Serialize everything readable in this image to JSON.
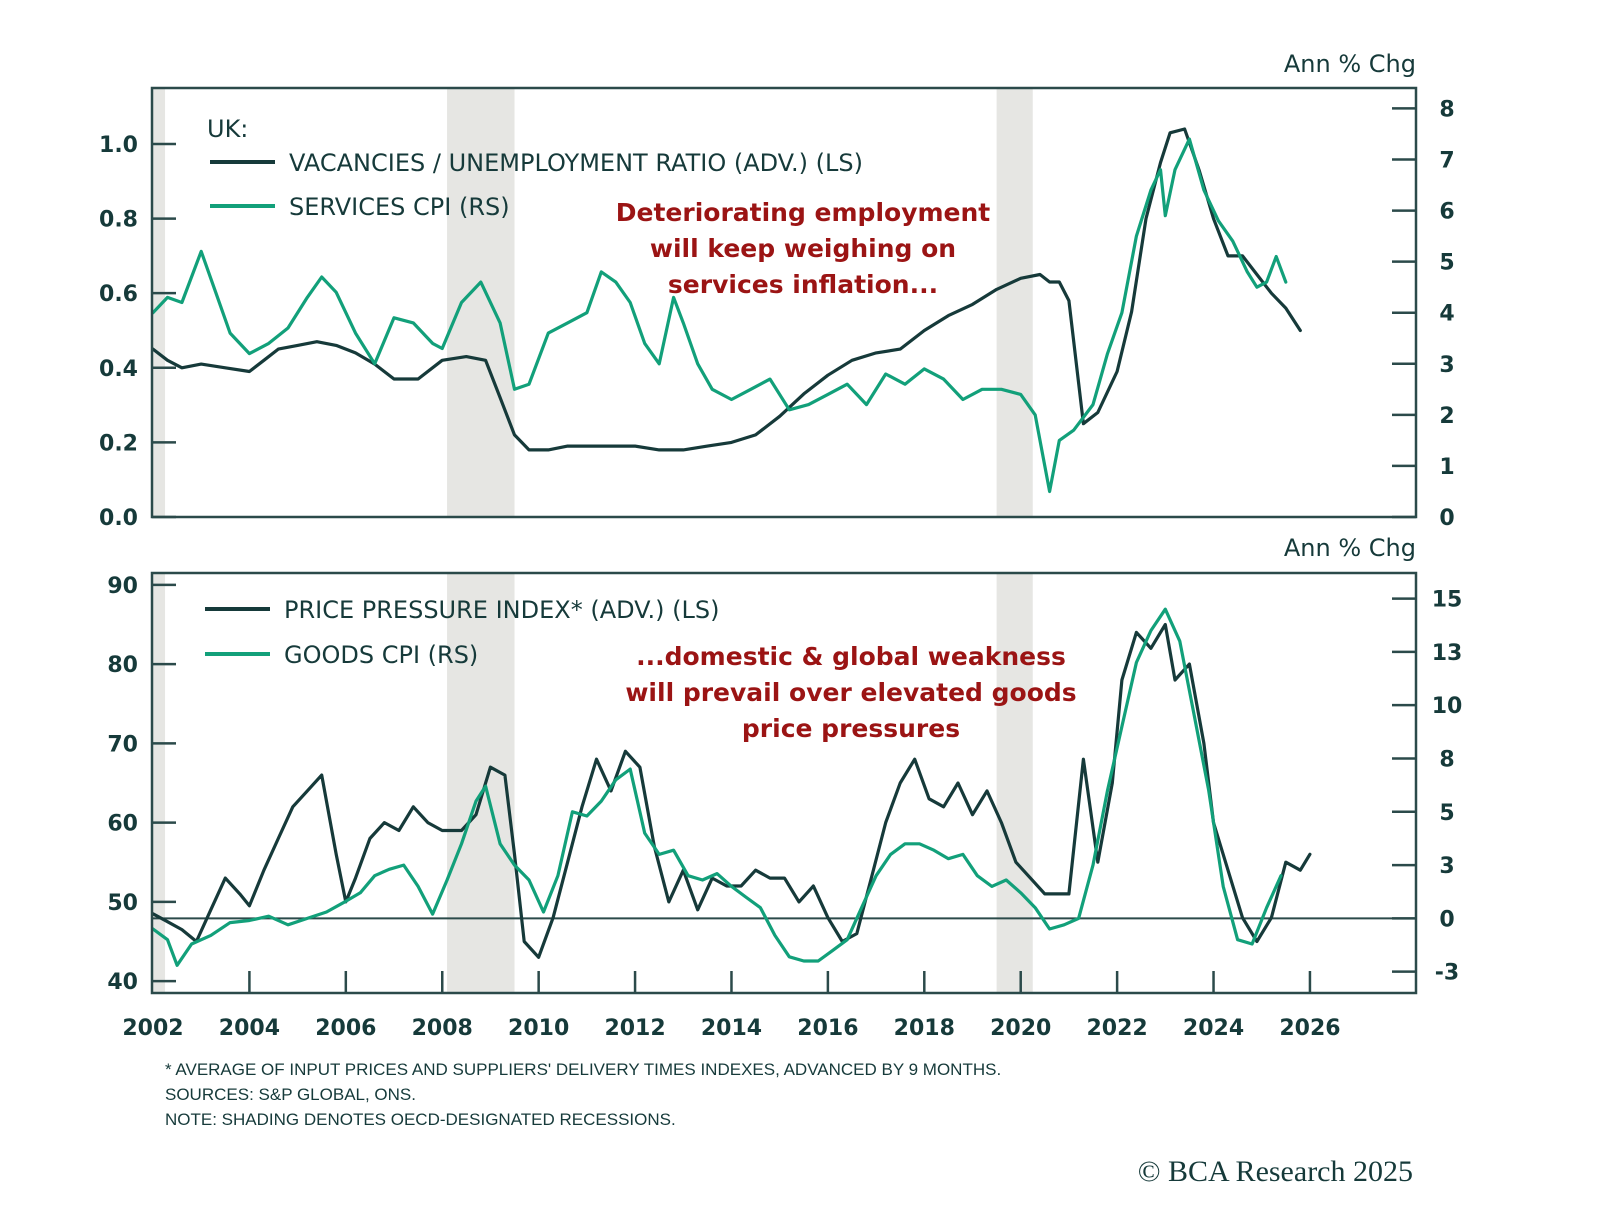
{
  "colors": {
    "dark_series": "#163a3a",
    "green_series": "#12a07a",
    "annotation": "#9b1414",
    "recession": "#e6e6e3",
    "axis": "#2b4a4a"
  },
  "footer": {
    "note1": "* AVERAGE OF INPUT PRICES AND SUPPLIERS' DELIVERY TIMES INDEXES, ADVANCED BY 9 MONTHS.",
    "note2": "SOURCES: S&P GLOBAL, ONS.",
    "note3": "NOTE: SHADING DENOTES OECD-DESIGNATED RECESSIONS.",
    "copyright": "© BCA Research 2025"
  },
  "chart_data": [
    {
      "type": "line",
      "panel": "top",
      "title": "UK:",
      "right_unit_label": "Ann % Chg",
      "annotation": [
        "Deteriorating employment",
        "will keep weighing on",
        "services inflation..."
      ],
      "x_ticks": [
        "2002",
        "2004",
        "2006",
        "2008",
        "2010",
        "2012",
        "2014",
        "2016",
        "2018",
        "2020",
        "2022",
        "2024",
        "2026"
      ],
      "xlim": [
        2002,
        2028.2
      ],
      "left_axis": {
        "ylim": [
          0.0,
          1.15
        ],
        "ticks": [
          0.0,
          0.2,
          0.4,
          0.6,
          0.8,
          1.0
        ],
        "tick_labels": [
          "0.0",
          "0.2",
          "0.4",
          "0.6",
          "0.8",
          "1.0"
        ]
      },
      "right_axis": {
        "ylim": [
          0,
          8.4
        ],
        "ticks": [
          0,
          1,
          2,
          3,
          4,
          5,
          6,
          7,
          8
        ],
        "tick_labels": [
          "0",
          "1",
          "2",
          "3",
          "4",
          "5",
          "6",
          "7",
          "8"
        ]
      },
      "recessions": [
        [
          2002.0,
          2002.25
        ],
        [
          2008.1,
          2009.5
        ],
        [
          2019.5,
          2020.25
        ]
      ],
      "series": [
        {
          "name": "VACANCIES / UNEMPLOYMENT RATIO (ADV.) (LS)",
          "axis": "left",
          "color_key": "dark_series",
          "x": [
            2002.0,
            2002.3,
            2002.6,
            2003.0,
            2003.5,
            2004.0,
            2004.3,
            2004.6,
            2005.0,
            2005.4,
            2005.8,
            2006.2,
            2006.6,
            2007.0,
            2007.5,
            2008.0,
            2008.5,
            2008.9,
            2009.2,
            2009.5,
            2009.8,
            2010.2,
            2010.6,
            2011.0,
            2011.5,
            2012.0,
            2012.5,
            2013.0,
            2013.5,
            2014.0,
            2014.5,
            2015.0,
            2015.5,
            2016.0,
            2016.5,
            2017.0,
            2017.5,
            2018.0,
            2018.5,
            2019.0,
            2019.5,
            2020.0,
            2020.4,
            2020.6,
            2020.8,
            2021.0,
            2021.3,
            2021.6,
            2022.0,
            2022.3,
            2022.6,
            2022.9,
            2023.1,
            2023.4,
            2023.7,
            2024.0,
            2024.3,
            2024.6,
            2024.9,
            2025.2,
            2025.5,
            2025.8
          ],
          "y": [
            0.45,
            0.42,
            0.4,
            0.41,
            0.4,
            0.39,
            0.42,
            0.45,
            0.46,
            0.47,
            0.46,
            0.44,
            0.41,
            0.37,
            0.37,
            0.42,
            0.43,
            0.42,
            0.32,
            0.22,
            0.18,
            0.18,
            0.19,
            0.19,
            0.19,
            0.19,
            0.18,
            0.18,
            0.19,
            0.2,
            0.22,
            0.27,
            0.33,
            0.38,
            0.42,
            0.44,
            0.45,
            0.5,
            0.54,
            0.57,
            0.61,
            0.64,
            0.65,
            0.63,
            0.63,
            0.58,
            0.25,
            0.28,
            0.39,
            0.55,
            0.8,
            0.95,
            1.03,
            1.04,
            0.93,
            0.8,
            0.7,
            0.7,
            0.65,
            0.6,
            0.56,
            0.5
          ]
        },
        {
          "name": "SERVICES CPI (RS)",
          "axis": "right",
          "color_key": "green_series",
          "x": [
            2002.0,
            2002.3,
            2002.6,
            2003.0,
            2003.3,
            2003.6,
            2004.0,
            2004.4,
            2004.8,
            2005.2,
            2005.5,
            2005.8,
            2006.2,
            2006.6,
            2007.0,
            2007.4,
            2007.8,
            2008.0,
            2008.4,
            2008.8,
            2009.2,
            2009.5,
            2009.8,
            2010.2,
            2010.6,
            2011.0,
            2011.3,
            2011.6,
            2011.9,
            2012.2,
            2012.5,
            2012.8,
            2013.0,
            2013.3,
            2013.6,
            2014.0,
            2014.4,
            2014.8,
            2015.2,
            2015.6,
            2016.0,
            2016.4,
            2016.8,
            2017.2,
            2017.6,
            2018.0,
            2018.4,
            2018.8,
            2019.2,
            2019.6,
            2020.0,
            2020.3,
            2020.5,
            2020.6,
            2020.8,
            2021.1,
            2021.5,
            2021.8,
            2022.1,
            2022.4,
            2022.7,
            2022.9,
            2023.0,
            2023.2,
            2023.5,
            2023.8,
            2024.1,
            2024.4,
            2024.7,
            2024.9,
            2025.1,
            2025.3,
            2025.5
          ],
          "y": [
            4.0,
            4.3,
            4.2,
            5.2,
            4.4,
            3.6,
            3.2,
            3.4,
            3.7,
            4.3,
            4.7,
            4.4,
            3.6,
            3.0,
            3.9,
            3.8,
            3.4,
            3.3,
            4.2,
            4.6,
            3.8,
            2.5,
            2.6,
            3.6,
            3.8,
            4.0,
            4.8,
            4.6,
            4.2,
            3.4,
            3.0,
            4.3,
            3.8,
            3.0,
            2.5,
            2.3,
            2.5,
            2.7,
            2.1,
            2.2,
            2.4,
            2.6,
            2.2,
            2.8,
            2.6,
            2.9,
            2.7,
            2.3,
            2.5,
            2.5,
            2.4,
            2.0,
            1.0,
            0.5,
            1.5,
            1.7,
            2.2,
            3.2,
            4.0,
            5.5,
            6.4,
            6.8,
            5.9,
            6.8,
            7.4,
            6.4,
            5.8,
            5.4,
            4.8,
            4.5,
            4.6,
            5.1,
            4.6
          ]
        }
      ]
    },
    {
      "type": "line",
      "panel": "bottom",
      "right_unit_label": "Ann % Chg",
      "annotation": [
        "...domestic & global weakness",
        "will prevail over elevated goods",
        "price pressures"
      ],
      "x_ticks": [
        "2002",
        "2004",
        "2006",
        "2008",
        "2010",
        "2012",
        "2014",
        "2016",
        "2018",
        "2020",
        "2022",
        "2024",
        "2026"
      ],
      "xlim": [
        2002,
        2028.2
      ],
      "left_axis": {
        "ylim": [
          38.5,
          91.5
        ],
        "ticks": [
          40,
          50,
          60,
          70,
          80,
          90
        ],
        "tick_labels": [
          "40",
          "50",
          "60",
          "70",
          "80",
          "90"
        ]
      },
      "right_axis": {
        "ylim": [
          -3.5,
          16.2
        ],
        "ticks": [
          -2.5,
          0,
          2.5,
          5,
          7.5,
          10,
          12.5,
          15
        ],
        "tick_labels": [
          "-3",
          "0",
          "3",
          "5",
          "8",
          "10",
          "13",
          "15"
        ]
      },
      "zero_line": 0,
      "recessions": [
        [
          2002.0,
          2002.25
        ],
        [
          2008.1,
          2009.5
        ],
        [
          2019.5,
          2020.25
        ]
      ],
      "series": [
        {
          "name": "PRICE PRESSURE INDEX* (ADV.) (LS)",
          "axis": "left",
          "color_key": "dark_series",
          "x": [
            2002.0,
            2002.3,
            2002.6,
            2002.9,
            2003.2,
            2003.5,
            2003.8,
            2004.0,
            2004.3,
            2004.6,
            2004.9,
            2005.2,
            2005.5,
            2005.8,
            2006.0,
            2006.2,
            2006.5,
            2006.8,
            2007.1,
            2007.4,
            2007.7,
            2008.0,
            2008.4,
            2008.7,
            2009.0,
            2009.3,
            2009.5,
            2009.7,
            2010.0,
            2010.3,
            2010.6,
            2010.9,
            2011.2,
            2011.5,
            2011.8,
            2012.1,
            2012.4,
            2012.7,
            2013.0,
            2013.3,
            2013.6,
            2013.9,
            2014.2,
            2014.5,
            2014.8,
            2015.1,
            2015.4,
            2015.7,
            2016.0,
            2016.3,
            2016.6,
            2016.9,
            2017.2,
            2017.5,
            2017.8,
            2018.1,
            2018.4,
            2018.7,
            2019.0,
            2019.3,
            2019.6,
            2019.9,
            2020.2,
            2020.5,
            2020.8,
            2021.0,
            2021.3,
            2021.6,
            2021.9,
            2022.1,
            2022.4,
            2022.7,
            2023.0,
            2023.2,
            2023.5,
            2023.8,
            2024.0,
            2024.3,
            2024.6,
            2024.9,
            2025.2,
            2025.5,
            2025.8,
            2026.0
          ],
          "y": [
            48.5,
            47.5,
            46.5,
            45,
            49,
            53,
            51,
            49.5,
            54,
            58,
            62,
            64,
            66,
            56,
            50,
            53,
            58,
            60,
            59,
            62,
            60,
            59,
            59,
            61,
            67,
            66,
            56,
            45,
            43,
            48,
            55,
            62,
            68,
            64,
            69,
            67,
            57,
            50,
            54,
            49,
            53,
            52,
            52,
            54,
            53,
            53,
            50,
            52,
            48,
            45,
            46,
            53,
            60,
            65,
            68,
            63,
            62,
            65,
            61,
            64,
            60,
            55,
            53,
            51,
            51,
            51,
            68,
            55,
            65,
            78,
            84,
            82,
            85,
            78,
            80,
            70,
            60,
            54,
            48,
            45,
            48,
            55,
            54,
            56
          ]
        },
        {
          "name": "GOODS CPI (RS)",
          "axis": "right",
          "color_key": "green_series",
          "x": [
            2002.0,
            2002.3,
            2002.5,
            2002.8,
            2003.2,
            2003.6,
            2004.0,
            2004.4,
            2004.8,
            2005.2,
            2005.6,
            2006.0,
            2006.3,
            2006.6,
            2006.9,
            2007.2,
            2007.5,
            2007.8,
            2008.1,
            2008.4,
            2008.7,
            2008.9,
            2009.2,
            2009.5,
            2009.8,
            2010.1,
            2010.4,
            2010.7,
            2011.0,
            2011.3,
            2011.6,
            2011.9,
            2012.2,
            2012.5,
            2012.8,
            2013.1,
            2013.4,
            2013.7,
            2014.0,
            2014.3,
            2014.6,
            2014.9,
            2015.2,
            2015.5,
            2015.8,
            2016.1,
            2016.4,
            2016.7,
            2017.0,
            2017.3,
            2017.6,
            2017.9,
            2018.2,
            2018.5,
            2018.8,
            2019.1,
            2019.4,
            2019.7,
            2020.0,
            2020.3,
            2020.6,
            2020.9,
            2021.2,
            2021.5,
            2021.8,
            2022.1,
            2022.4,
            2022.7,
            2023.0,
            2023.3,
            2023.6,
            2023.9,
            2024.2,
            2024.5,
            2024.8,
            2025.1,
            2025.4
          ],
          "y": [
            -0.5,
            -1.0,
            -2.2,
            -1.2,
            -0.8,
            -0.2,
            -0.1,
            0.1,
            -0.3,
            0.0,
            0.3,
            0.8,
            1.2,
            2.0,
            2.3,
            2.5,
            1.5,
            0.2,
            1.8,
            3.5,
            5.5,
            6.2,
            3.5,
            2.5,
            1.8,
            0.3,
            2.0,
            5.0,
            4.8,
            5.5,
            6.5,
            7.0,
            4.0,
            3.0,
            3.2,
            2.0,
            1.8,
            2.1,
            1.5,
            1.0,
            0.5,
            -0.8,
            -1.8,
            -2.0,
            -2.0,
            -1.5,
            -1.0,
            0.5,
            2.0,
            3.0,
            3.5,
            3.5,
            3.2,
            2.8,
            3.0,
            2.0,
            1.5,
            1.8,
            1.2,
            0.5,
            -0.5,
            -0.3,
            0.0,
            2.5,
            6.0,
            9.0,
            12.0,
            13.5,
            14.5,
            13.0,
            9.5,
            6.0,
            1.5,
            -1.0,
            -1.2,
            0.5,
            2.0
          ]
        }
      ]
    }
  ]
}
